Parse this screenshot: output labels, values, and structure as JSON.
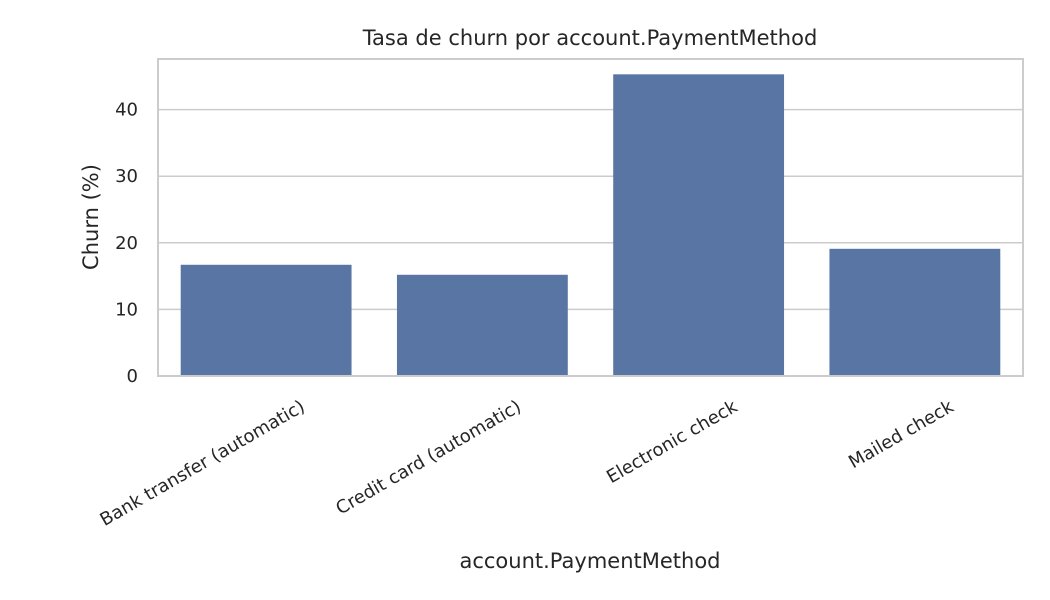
{
  "chart_data": {
    "type": "bar",
    "title": "Tasa de churn por account.PaymentMethod",
    "xlabel": "account.PaymentMethod",
    "ylabel": "Churn (%)",
    "categories": [
      "Bank transfer (automatic)",
      "Credit card (automatic)",
      "Electronic check",
      "Mailed check"
    ],
    "values": [
      16.7,
      15.2,
      45.3,
      19.1
    ],
    "ylim": [
      0,
      47.6
    ],
    "yticks": [
      0,
      10,
      20,
      30,
      40
    ],
    "grid": true,
    "legend": "none",
    "bar_color": "#5975a4",
    "grid_color": "#cccccc",
    "text_color": "#262626"
  }
}
